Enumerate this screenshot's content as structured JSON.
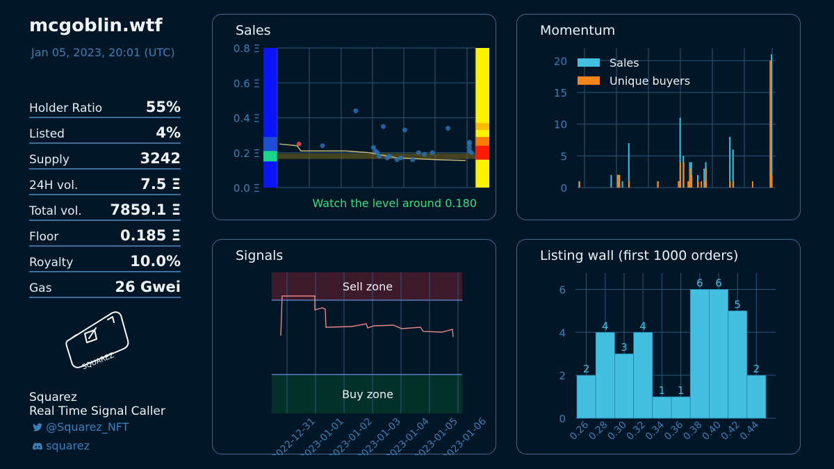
{
  "header": {
    "title": "mcgoblin.wtf",
    "timestamp": "Jan 05, 2023, 20:01 (UTC)"
  },
  "stats": [
    {
      "label": "Holder Ratio",
      "value": "55%"
    },
    {
      "label": "Listed",
      "value": "4%"
    },
    {
      "label": "Supply",
      "value": "3242"
    },
    {
      "label": "24H vol.",
      "value": "7.5 Ξ"
    },
    {
      "label": "Total vol.",
      "value": "7859.1 Ξ"
    },
    {
      "label": "Floor",
      "value": "0.185 Ξ"
    },
    {
      "label": "Royalty",
      "value": "10.0%"
    },
    {
      "label": "Gas",
      "value": "26 Gwei"
    }
  ],
  "branding": {
    "logo_text": "SQUAREZ",
    "name": "Squarez",
    "tagline": "Real Time Signal Caller",
    "twitter": "@Squarez_NFT",
    "discord": "squarez"
  },
  "colors": {
    "background": "#011627",
    "panel_border": "#3f6b92",
    "axis_text": "#3f7fb7",
    "sales_bar": "#45bfe0",
    "buyers_bar": "#f58518",
    "watch_text": "#3ddc84"
  },
  "panels": {
    "sales": {
      "title": "Sales",
      "note": "Watch the level around 0.180"
    },
    "momentum": {
      "title": "Momentum"
    },
    "signals": {
      "title": "Signals",
      "sell_label": "Sell zone",
      "buy_label": "Buy zone"
    },
    "listing": {
      "title": "Listing wall (first 1000 orders)"
    }
  },
  "chart_data": [
    {
      "id": "sales",
      "type": "scatter",
      "title": "Sales",
      "ylim": [
        0,
        0.8
      ],
      "yticks": [
        "0.0 Ξ",
        "0.2 Ξ",
        "0.4 Ξ",
        "0.6 Ξ",
        "0.8 Ξ"
      ],
      "ytick_values": [
        0,
        0.2,
        0.4,
        0.6,
        0.8
      ],
      "points": [
        [
          0.1,
          0.25
        ],
        [
          0.22,
          0.24
        ],
        [
          0.39,
          0.44
        ],
        [
          0.48,
          0.23
        ],
        [
          0.49,
          0.21
        ],
        [
          0.5,
          0.2
        ],
        [
          0.51,
          0.18
        ],
        [
          0.53,
          0.35
        ],
        [
          0.56,
          0.18
        ],
        [
          0.6,
          0.16
        ],
        [
          0.64,
          0.33
        ],
        [
          0.68,
          0.16
        ],
        [
          0.71,
          0.2
        ],
        [
          0.74,
          0.19
        ],
        [
          0.78,
          0.2
        ],
        [
          0.86,
          0.34
        ],
        [
          0.97,
          0.26
        ],
        [
          0.97,
          0.23
        ],
        [
          0.97,
          0.21
        ],
        [
          0.98,
          0.2
        ],
        [
          0.97,
          0.25
        ],
        [
          0.55,
          0.17
        ],
        [
          0.62,
          0.17
        ]
      ],
      "trend": [
        [
          0.0,
          0.25
        ],
        [
          0.09,
          0.24
        ],
        [
          0.11,
          0.21
        ],
        [
          0.2,
          0.21
        ],
        [
          0.34,
          0.21
        ],
        [
          0.46,
          0.2
        ],
        [
          0.6,
          0.17
        ],
        [
          0.8,
          0.16
        ],
        [
          0.95,
          0.155
        ]
      ],
      "level": 0.18
    },
    {
      "id": "momentum",
      "type": "bar",
      "title": "Momentum",
      "ylim": [
        0,
        22
      ],
      "yticks": [
        0,
        5,
        10,
        15,
        20
      ],
      "series": [
        {
          "name": "Sales",
          "values": [
            [
              0.01,
              1
            ],
            [
              0.25,
              2
            ],
            [
              0.26,
              2
            ],
            [
              0.32,
              7
            ],
            [
              0.64,
              11
            ],
            [
              0.66,
              5
            ],
            [
              0.7,
              4
            ],
            [
              0.71,
              4
            ],
            [
              0.75,
              2
            ],
            [
              0.79,
              3
            ],
            [
              0.8,
              4
            ],
            [
              0.95,
              8
            ],
            [
              0.97,
              6
            ],
            [
              1.22,
              0
            ],
            [
              1.21,
              21
            ],
            [
              0.21,
              2
            ],
            [
              0.28,
              1
            ],
            [
              0.5,
              1
            ],
            [
              0.63,
              1
            ],
            [
              0.69,
              1
            ]
          ]
        },
        {
          "name": "Unique buyers",
          "values": [
            [
              0.01,
              1
            ],
            [
              0.25,
              2
            ],
            [
              0.26,
              2
            ],
            [
              0.32,
              1
            ],
            [
              0.5,
              1
            ],
            [
              0.63,
              1
            ],
            [
              0.64,
              4
            ],
            [
              0.66,
              4
            ],
            [
              0.69,
              1
            ],
            [
              0.7,
              3
            ],
            [
              0.71,
              2
            ],
            [
              0.75,
              1
            ],
            [
              0.77,
              1
            ],
            [
              0.79,
              1
            ],
            [
              0.8,
              3
            ],
            [
              0.95,
              1
            ],
            [
              0.97,
              1
            ],
            [
              1.09,
              1
            ],
            [
              1.2,
              20
            ],
            [
              1.21,
              2
            ]
          ]
        }
      ]
    },
    {
      "id": "signals",
      "type": "line",
      "title": "Signals",
      "xticks": [
        "2022-12-31",
        "2023-01-01",
        "2023-01-02",
        "2023-01-03",
        "2023-01-04",
        "2023-01-05",
        "2023-01-06"
      ]
    },
    {
      "id": "listing",
      "type": "bar",
      "title": "Listing wall (first 1000 orders)",
      "categories": [
        "0.26",
        "0.28",
        "0.30",
        "0.32",
        "0.34",
        "0.36",
        "0.38",
        "0.40",
        "0.42",
        "0.44"
      ],
      "values": [
        2,
        4,
        3,
        4,
        1,
        1,
        6,
        6,
        5,
        2
      ],
      "yticks": [
        0,
        2,
        4,
        6
      ],
      "ylim": [
        0,
        6.5
      ]
    }
  ]
}
